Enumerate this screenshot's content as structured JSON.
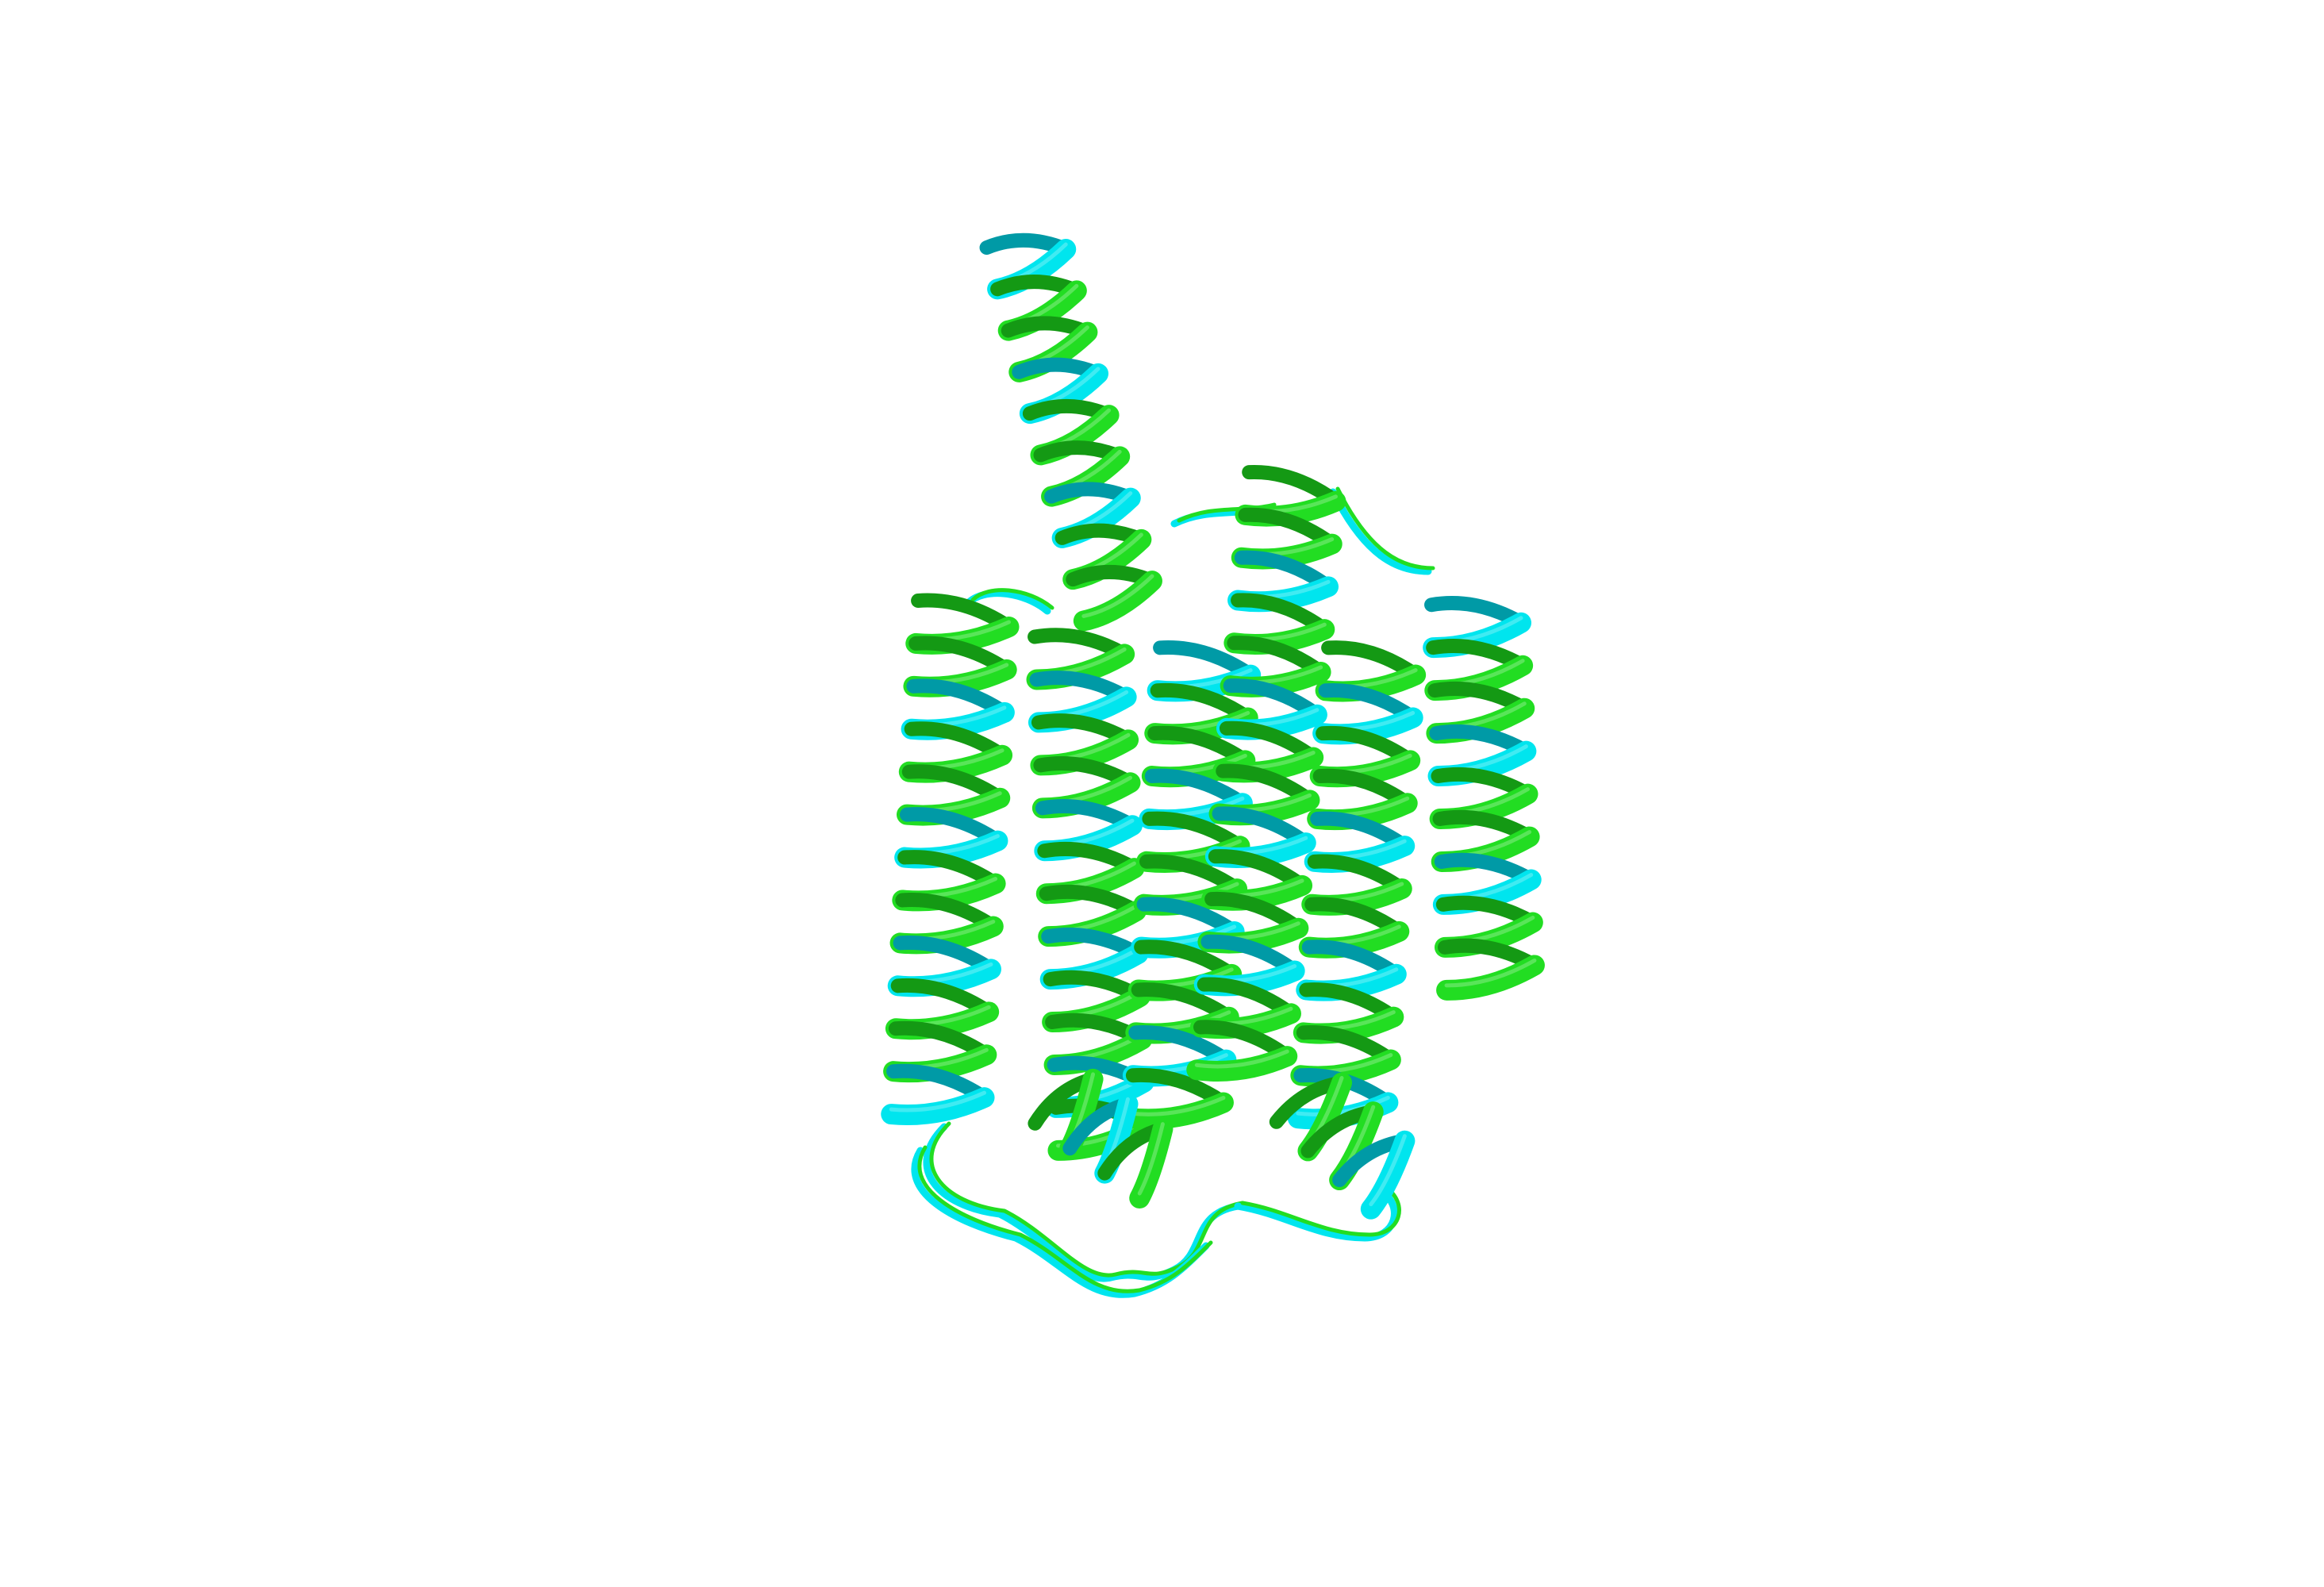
{
  "colors": {
    "background": "#ffffff",
    "structure_a": "#22dd22",
    "structure_a_dark": "#149914",
    "structure_b": "#00e5ee",
    "structure_b_dark": "#009aa6"
  },
  "scene": {
    "subject": "protein-cartoon",
    "structures": [
      {
        "name_key": "structure_a",
        "style": "ribbon",
        "color_key": "structure_a"
      },
      {
        "name_key": "structure_b",
        "style": "ribbon",
        "color_key": "structure_b"
      }
    ]
  }
}
